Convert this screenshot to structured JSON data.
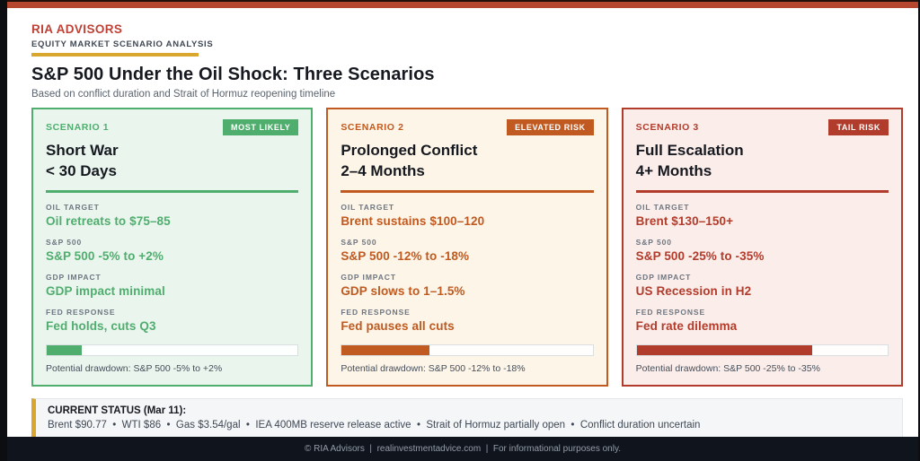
{
  "brand": {
    "name": "RIA ADVISORS",
    "tagline": "EQUITY MARKET SCENARIO ANALYSIS"
  },
  "header": {
    "title": "S&P 500 Under the Oil Shock: Three Scenarios",
    "subtitle": "Based on conflict duration and Strait of Hormuz reopening timeline"
  },
  "colors": {
    "top_bar": "#b5472f",
    "brand_red": "#bf4034",
    "gold_accent": "#d9a62e",
    "footer_bg": "#10151d",
    "scenario_green": "#4fae6d",
    "scenario_orange": "#c05a20",
    "scenario_red": "#b23c2b"
  },
  "cards": [
    {
      "label": "SCENARIO 1",
      "badge": "MOST LIKELY",
      "title_line1": "Short War",
      "title_line2": "< 30 Days",
      "accent": "#4fae6d",
      "background": "#eaf5ee",
      "metrics": [
        {
          "label": "OIL TARGET",
          "value": "Oil retreats to $75–85"
        },
        {
          "label": "S&P 500",
          "value": "S&P 500 -5% to +2%"
        },
        {
          "label": "GDP IMPACT",
          "value": "GDP impact minimal"
        },
        {
          "label": "FED RESPONSE",
          "value": "Fed holds, cuts Q3"
        }
      ],
      "drawdown_fill_pct": 14,
      "drawdown_note": "Potential drawdown: S&P 500 -5% to +2%"
    },
    {
      "label": "SCENARIO 2",
      "badge": "ELEVATED RISK",
      "title_line1": "Prolonged Conflict",
      "title_line2": "2–4 Months",
      "accent": "#c05a20",
      "background": "#fdf5e8",
      "metrics": [
        {
          "label": "OIL TARGET",
          "value": "Brent sustains $100–120"
        },
        {
          "label": "S&P 500",
          "value": "S&P 500 -12% to -18%"
        },
        {
          "label": "GDP IMPACT",
          "value": "GDP slows to 1–1.5%"
        },
        {
          "label": "FED RESPONSE",
          "value": "Fed pauses all cuts"
        }
      ],
      "drawdown_fill_pct": 35,
      "drawdown_note": "Potential drawdown: S&P 500 -12% to -18%"
    },
    {
      "label": "SCENARIO 3",
      "badge": "TAIL RISK",
      "title_line1": "Full Escalation",
      "title_line2": "4+ Months",
      "accent": "#b23c2b",
      "background": "#fbedea",
      "metrics": [
        {
          "label": "OIL TARGET",
          "value": "Brent $130–150+"
        },
        {
          "label": "S&P 500",
          "value": "S&P 500 -25% to -35%"
        },
        {
          "label": "GDP IMPACT",
          "value": "US Recession in H2"
        },
        {
          "label": "FED RESPONSE",
          "value": "Fed rate dilemma"
        }
      ],
      "drawdown_fill_pct": 70,
      "drawdown_note": "Potential drawdown: S&P 500 -25% to -35%"
    }
  ],
  "status": {
    "heading": "CURRENT STATUS (Mar 11):",
    "detail": "Brent $90.77  •  WTI $86  •  Gas $3.54/gal  •  IEA 400MB reserve release active  •  Strait of Hormuz partially open  •  Conflict duration uncertain"
  },
  "footer": {
    "text": "© RIA Advisors  |  realinvestmentadvice.com  |  For informational purposes only."
  }
}
